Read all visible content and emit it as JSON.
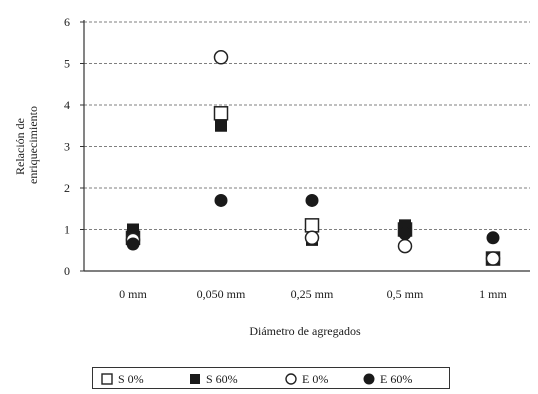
{
  "chart_data": {
    "type": "scatter",
    "categories": [
      "0 mm",
      "0,050 mm",
      "0,25 mm",
      "0,5 mm",
      "1 mm"
    ],
    "xlabel": "Diámetro de agregados",
    "ylabel": [
      "Relación de",
      "enriquecimiento"
    ],
    "ylim": [
      0,
      6
    ],
    "yticks": [
      "0",
      "1",
      "2",
      "3",
      "4",
      "5",
      "6"
    ],
    "grid": "horizontal dashed",
    "legend_position": "bottom",
    "series": [
      {
        "name": "S 0%",
        "marker": "open-square",
        "values": [
          0.8,
          3.8,
          1.1,
          1.0,
          0.3
        ]
      },
      {
        "name": "S 60%",
        "marker": "filled-square",
        "values": [
          1.0,
          3.5,
          0.75,
          1.1,
          0.3
        ]
      },
      {
        "name": "E 0%",
        "marker": "open-circle",
        "values": [
          0.75,
          5.15,
          0.8,
          0.6,
          0.3
        ]
      },
      {
        "name": "E 60%",
        "marker": "filled-circle",
        "values": [
          0.65,
          1.7,
          1.7,
          0.9,
          0.8
        ]
      }
    ]
  }
}
